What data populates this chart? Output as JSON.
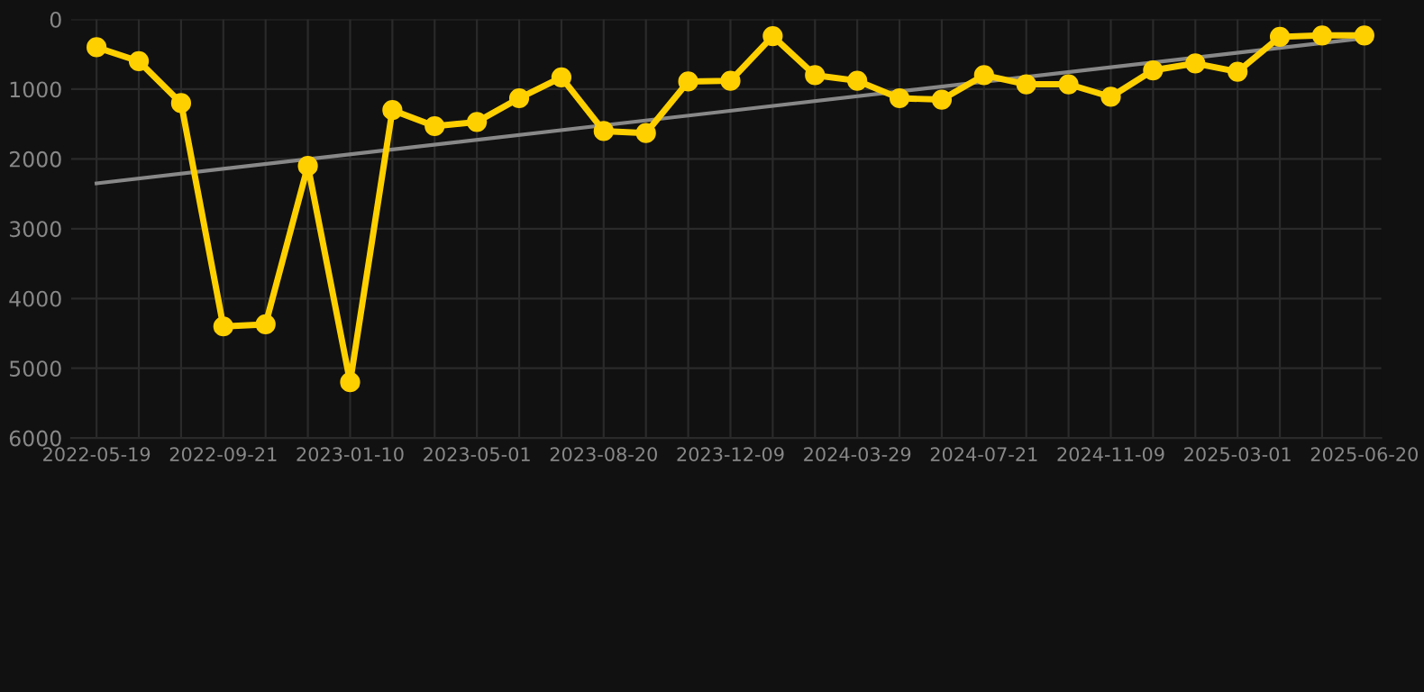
{
  "chart_data": {
    "type": "line",
    "categories": [
      "2022-05-19",
      null,
      null,
      "2022-09-21",
      null,
      null,
      "2023-01-10",
      null,
      null,
      "2023-05-01",
      null,
      null,
      "2023-08-20",
      null,
      null,
      "2023-12-09",
      null,
      null,
      "2024-03-29",
      null,
      null,
      "2024-07-21",
      null,
      null,
      "2024-11-09",
      null,
      null,
      "2025-03-01",
      null,
      null,
      "2025-06-20"
    ],
    "series": [
      {
        "color": "#ffd000",
        "marker": "circle",
        "values": [
          400,
          600,
          1200,
          4400,
          4370,
          2100,
          5200,
          1300,
          1530,
          1470,
          1130,
          830,
          1600,
          1630,
          890,
          880,
          240,
          800,
          880,
          1130,
          1150,
          800,
          930,
          930,
          1110,
          730,
          630,
          750,
          250,
          230,
          230
        ]
      },
      {
        "color": "#888888",
        "marker": "none",
        "values": [
          2350,
          null,
          null,
          null,
          null,
          null,
          null,
          null,
          null,
          null,
          null,
          null,
          null,
          null,
          null,
          null,
          null,
          null,
          null,
          null,
          null,
          null,
          null,
          null,
          null,
          null,
          null,
          null,
          null,
          null,
          270
        ]
      }
    ],
    "ylim": [
      6000,
      0
    ],
    "yticks": [
      0,
      1000,
      2000,
      3000,
      4000,
      5000,
      6000
    ],
    "grid": true
  }
}
